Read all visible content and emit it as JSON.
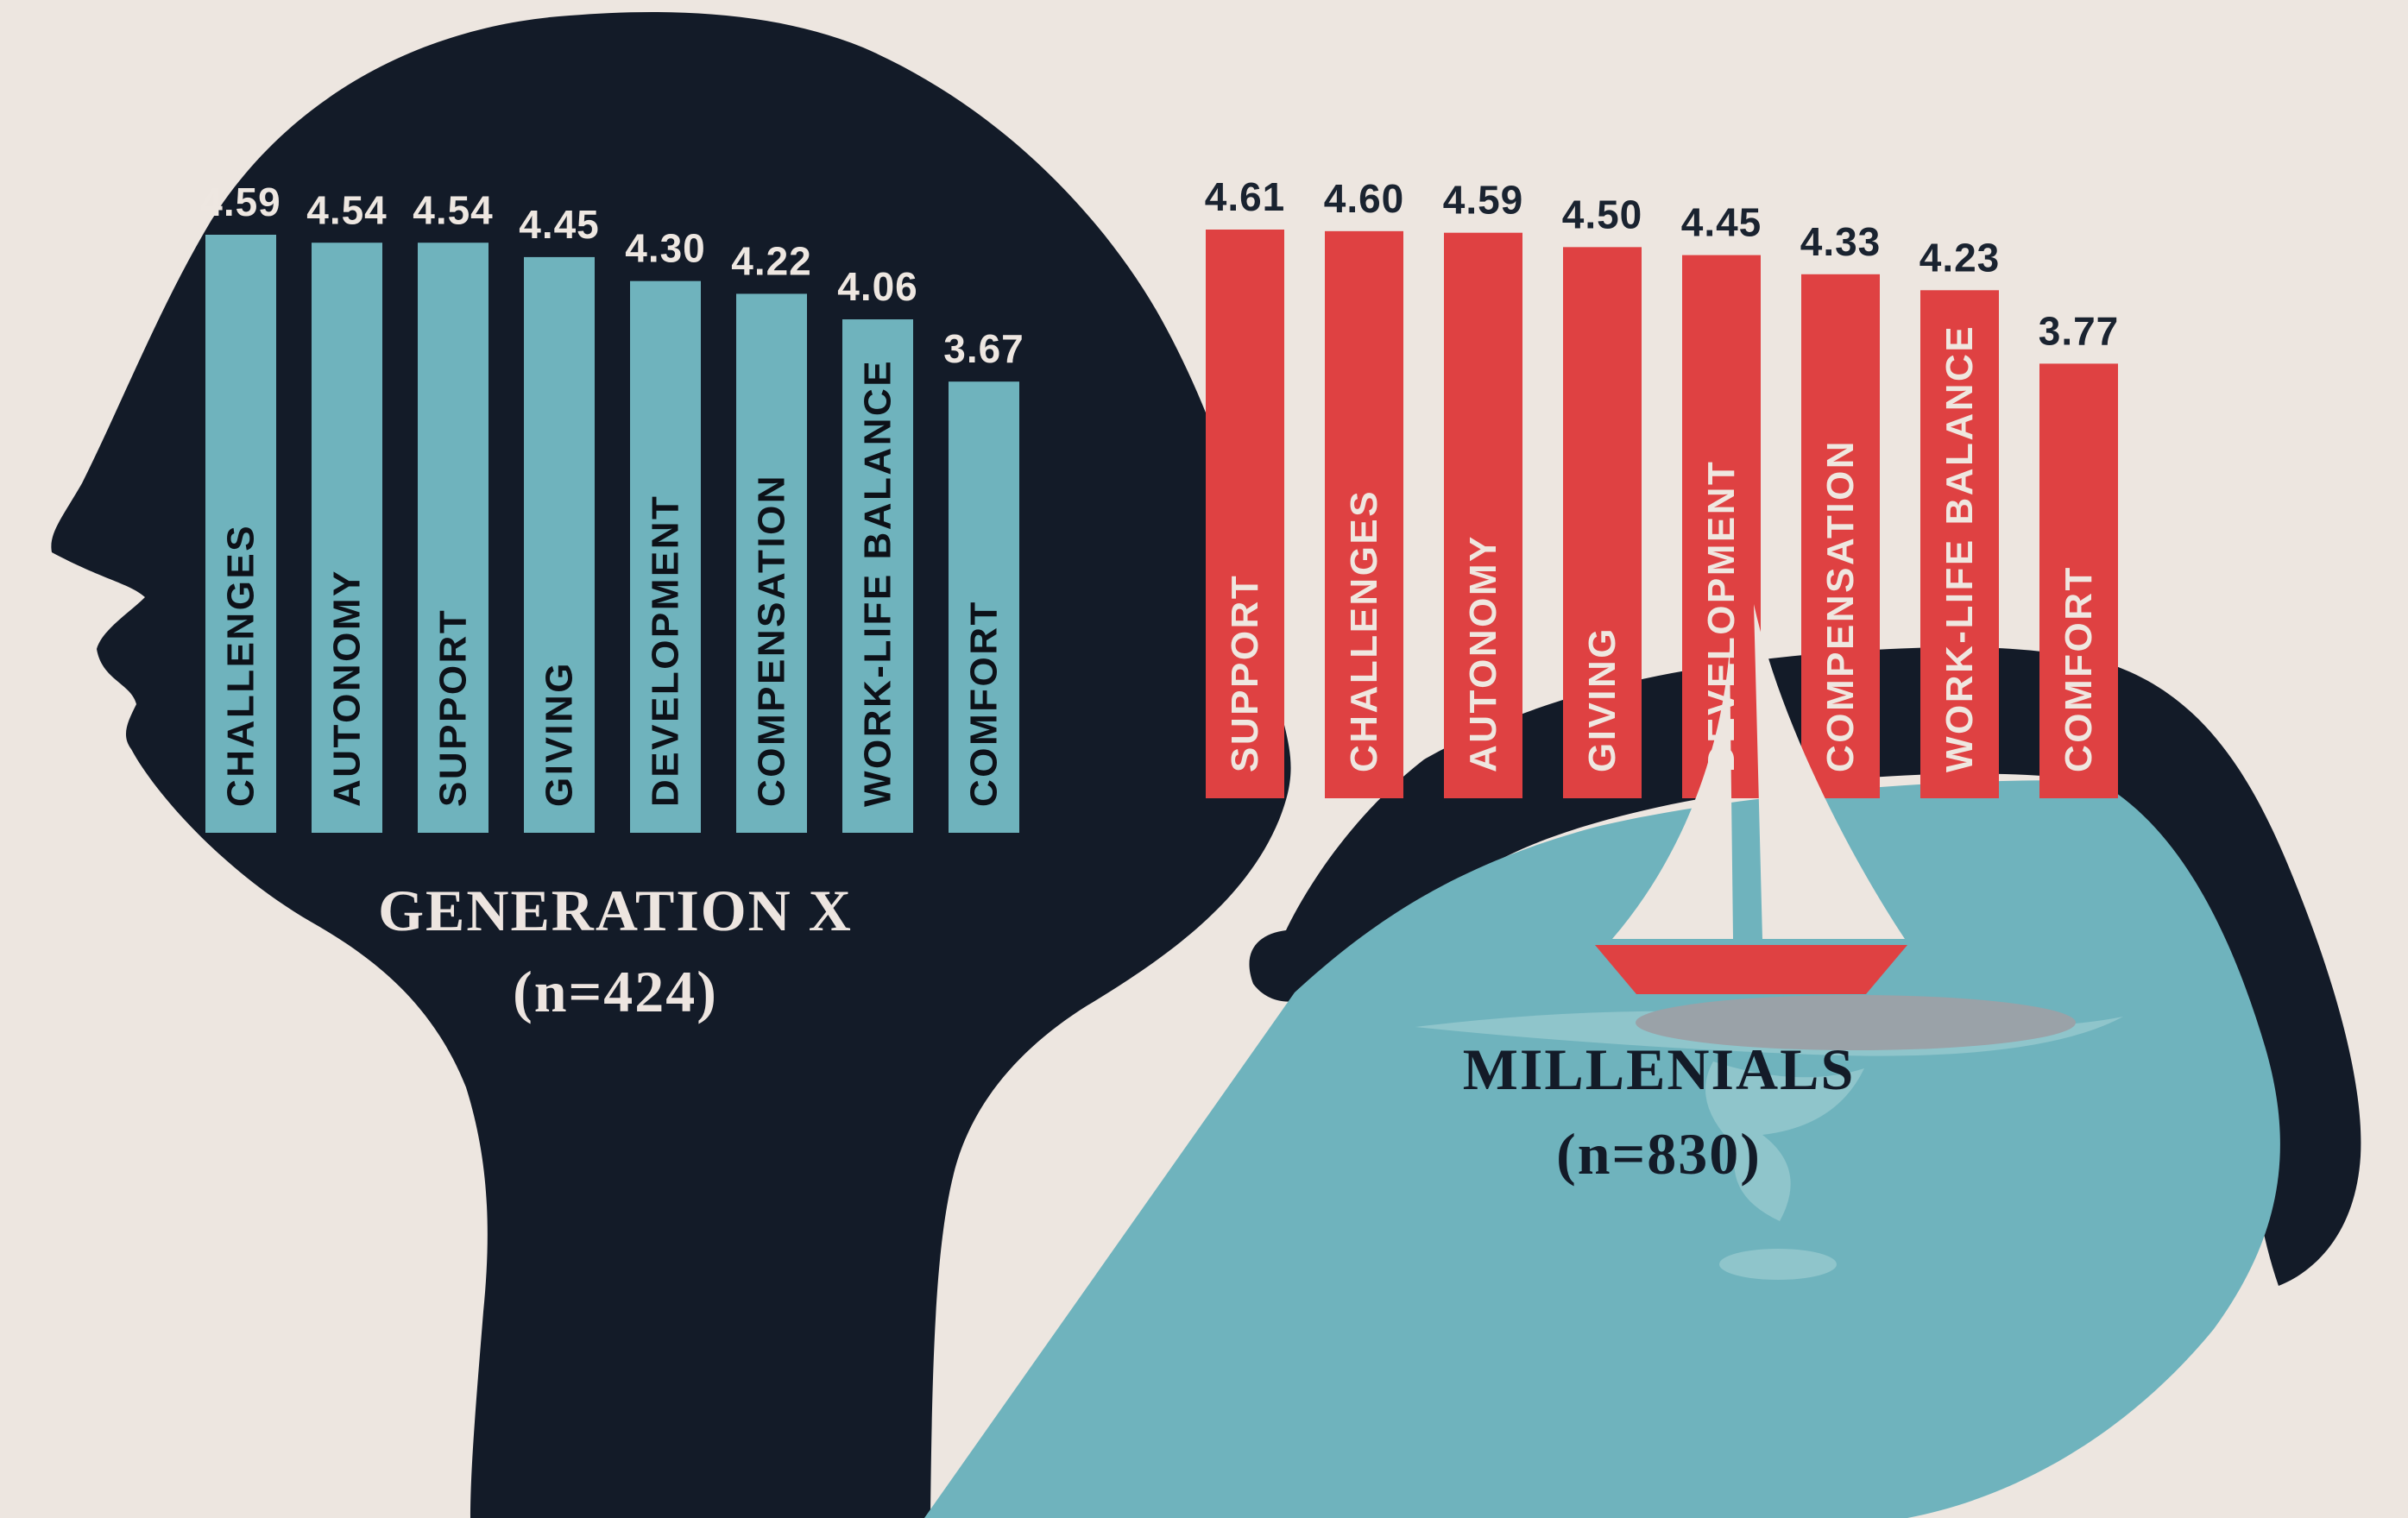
{
  "colors": {
    "background": "#EDE6E0",
    "silhouette_dark": "#131B28",
    "teal": "#6FB3BD",
    "red": "#DF4142",
    "ripple_light_teal": "#8FC5CB",
    "boat_shadow_gray": "#9AA2A8",
    "genx_value_text": "#EEE7E1",
    "genx_label_text": "#0D1118",
    "millennials_value_text": "#1A2330",
    "millennials_label_text": "#EFE7E0",
    "genx_title_text": "#EDE5E0",
    "millennials_title_text": "#131B28"
  },
  "chart_data": {
    "type": "bar",
    "orientation": "vertical-columns",
    "value_labels_position": "above-bars",
    "category_labels_position": "inside-bars-rotated-bottom-to-top",
    "grid": false,
    "legend": false,
    "groups": [
      {
        "label": "GENERATION X",
        "n_label": "(n=424)",
        "color": "#6FB3BD",
        "value_color": "#EEE7E1",
        "label_color": "#0D1118",
        "categories": [
          "CHALLENGES",
          "AUTONOMY",
          "SUPPORT",
          "GIVING",
          "DEVELOPMENT",
          "COMPENSATION",
          "WORK-LIFE BALANCE",
          "COMFORT"
        ],
        "values": [
          4.59,
          4.54,
          4.54,
          4.45,
          4.3,
          4.22,
          4.06,
          3.67
        ]
      },
      {
        "label": "MILLENIALS",
        "n_label": "(n=830)",
        "color": "#DF4142",
        "value_color": "#1A2330",
        "label_color": "#EFE7E0",
        "categories": [
          "SUPPORT",
          "CHALLENGES",
          "AUTONOMY",
          "GIVING",
          "DEVELOPMENT",
          "COMPENSATION",
          "WORK-LIFE BALANCE",
          "COMFORT"
        ],
        "values": [
          4.61,
          4.6,
          4.59,
          4.5,
          4.45,
          4.33,
          4.23,
          3.77
        ]
      }
    ]
  }
}
